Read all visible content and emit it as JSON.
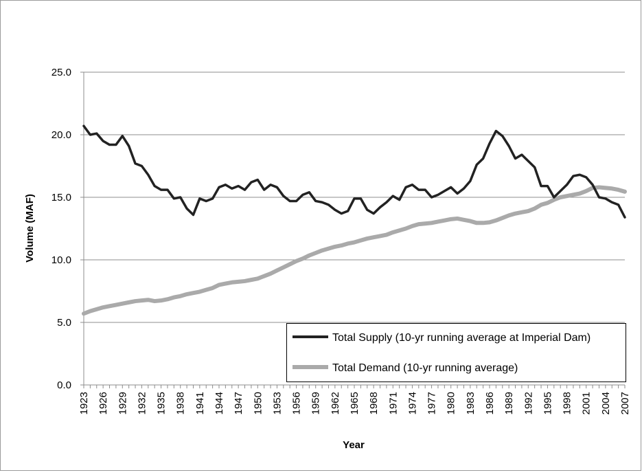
{
  "chart_data": {
    "type": "line",
    "title": "",
    "xlabel": "Year",
    "ylabel": "Volume (MAF)",
    "ylim": [
      0,
      25
    ],
    "yticks": [
      "0.0",
      "5.0",
      "10.0",
      "15.0",
      "20.0",
      "25.0"
    ],
    "xlim": [
      1923,
      2007
    ],
    "xticks": [
      "1923",
      "1926",
      "1929",
      "1932",
      "1935",
      "1938",
      "1941",
      "1944",
      "1947",
      "1950",
      "1953",
      "1956",
      "1959",
      "1962",
      "1965",
      "1968",
      "1971",
      "1974",
      "1977",
      "1980",
      "1983",
      "1986",
      "1989",
      "1992",
      "1995",
      "1998",
      "2001",
      "2004",
      "2007"
    ],
    "grid": "horizontal",
    "legend_position": "bottom-right",
    "x": [
      1923,
      1924,
      1925,
      1926,
      1927,
      1928,
      1929,
      1930,
      1931,
      1932,
      1933,
      1934,
      1935,
      1936,
      1937,
      1938,
      1939,
      1940,
      1941,
      1942,
      1943,
      1944,
      1945,
      1946,
      1947,
      1948,
      1949,
      1950,
      1951,
      1952,
      1953,
      1954,
      1955,
      1956,
      1957,
      1958,
      1959,
      1960,
      1961,
      1962,
      1963,
      1964,
      1965,
      1966,
      1967,
      1968,
      1969,
      1970,
      1971,
      1972,
      1973,
      1974,
      1975,
      1976,
      1977,
      1978,
      1979,
      1980,
      1981,
      1982,
      1983,
      1984,
      1985,
      1986,
      1987,
      1988,
      1989,
      1990,
      1991,
      1992,
      1993,
      1994,
      1995,
      1996,
      1997,
      1998,
      1999,
      2000,
      2001,
      2002,
      2003,
      2004,
      2005,
      2006,
      2007
    ],
    "series": [
      {
        "name": "Total Supply (10-yr running average at Imperial Dam)",
        "color": "#222222",
        "values": [
          20.7,
          20.0,
          20.1,
          19.5,
          19.2,
          19.2,
          19.9,
          19.1,
          17.7,
          17.5,
          16.8,
          15.9,
          15.6,
          15.6,
          14.9,
          15.0,
          14.1,
          13.6,
          14.9,
          14.7,
          14.9,
          15.8,
          16.0,
          15.7,
          15.9,
          15.6,
          16.2,
          16.4,
          15.6,
          16.0,
          15.8,
          15.1,
          14.7,
          14.7,
          15.2,
          15.4,
          14.7,
          14.6,
          14.4,
          14.0,
          13.7,
          13.9,
          14.9,
          14.9,
          14.0,
          13.7,
          14.2,
          14.6,
          15.1,
          14.8,
          15.8,
          16.0,
          15.6,
          15.6,
          15.0,
          15.2,
          15.5,
          15.8,
          15.3,
          15.7,
          16.3,
          17.6,
          18.1,
          19.3,
          20.3,
          19.9,
          19.1,
          18.1,
          18.4,
          17.9,
          17.4,
          15.9,
          15.9,
          15.0,
          15.5,
          16.0,
          16.7,
          16.8,
          16.6,
          16.0,
          15.0,
          14.9,
          14.6,
          14.4,
          13.4
        ]
      },
      {
        "name": "Total Demand (10-yr running average)",
        "color": "#aaaaaa",
        "values": [
          5.7,
          5.9,
          6.05,
          6.2,
          6.3,
          6.4,
          6.5,
          6.6,
          6.7,
          6.75,
          6.8,
          6.7,
          6.75,
          6.85,
          7.0,
          7.1,
          7.25,
          7.35,
          7.45,
          7.6,
          7.75,
          8.0,
          8.1,
          8.2,
          8.25,
          8.3,
          8.4,
          8.5,
          8.7,
          8.9,
          9.15,
          9.4,
          9.65,
          9.9,
          10.1,
          10.35,
          10.55,
          10.75,
          10.9,
          11.05,
          11.15,
          11.3,
          11.4,
          11.55,
          11.7,
          11.8,
          11.9,
          12.0,
          12.2,
          12.35,
          12.5,
          12.7,
          12.85,
          12.9,
          12.95,
          13.05,
          13.15,
          13.25,
          13.3,
          13.2,
          13.1,
          12.95,
          12.95,
          13.0,
          13.15,
          13.35,
          13.55,
          13.7,
          13.8,
          13.9,
          14.1,
          14.4,
          14.55,
          14.8,
          15.0,
          15.1,
          15.2,
          15.3,
          15.5,
          15.75,
          15.8,
          15.75,
          15.7,
          15.6,
          15.45
        ]
      }
    ]
  }
}
